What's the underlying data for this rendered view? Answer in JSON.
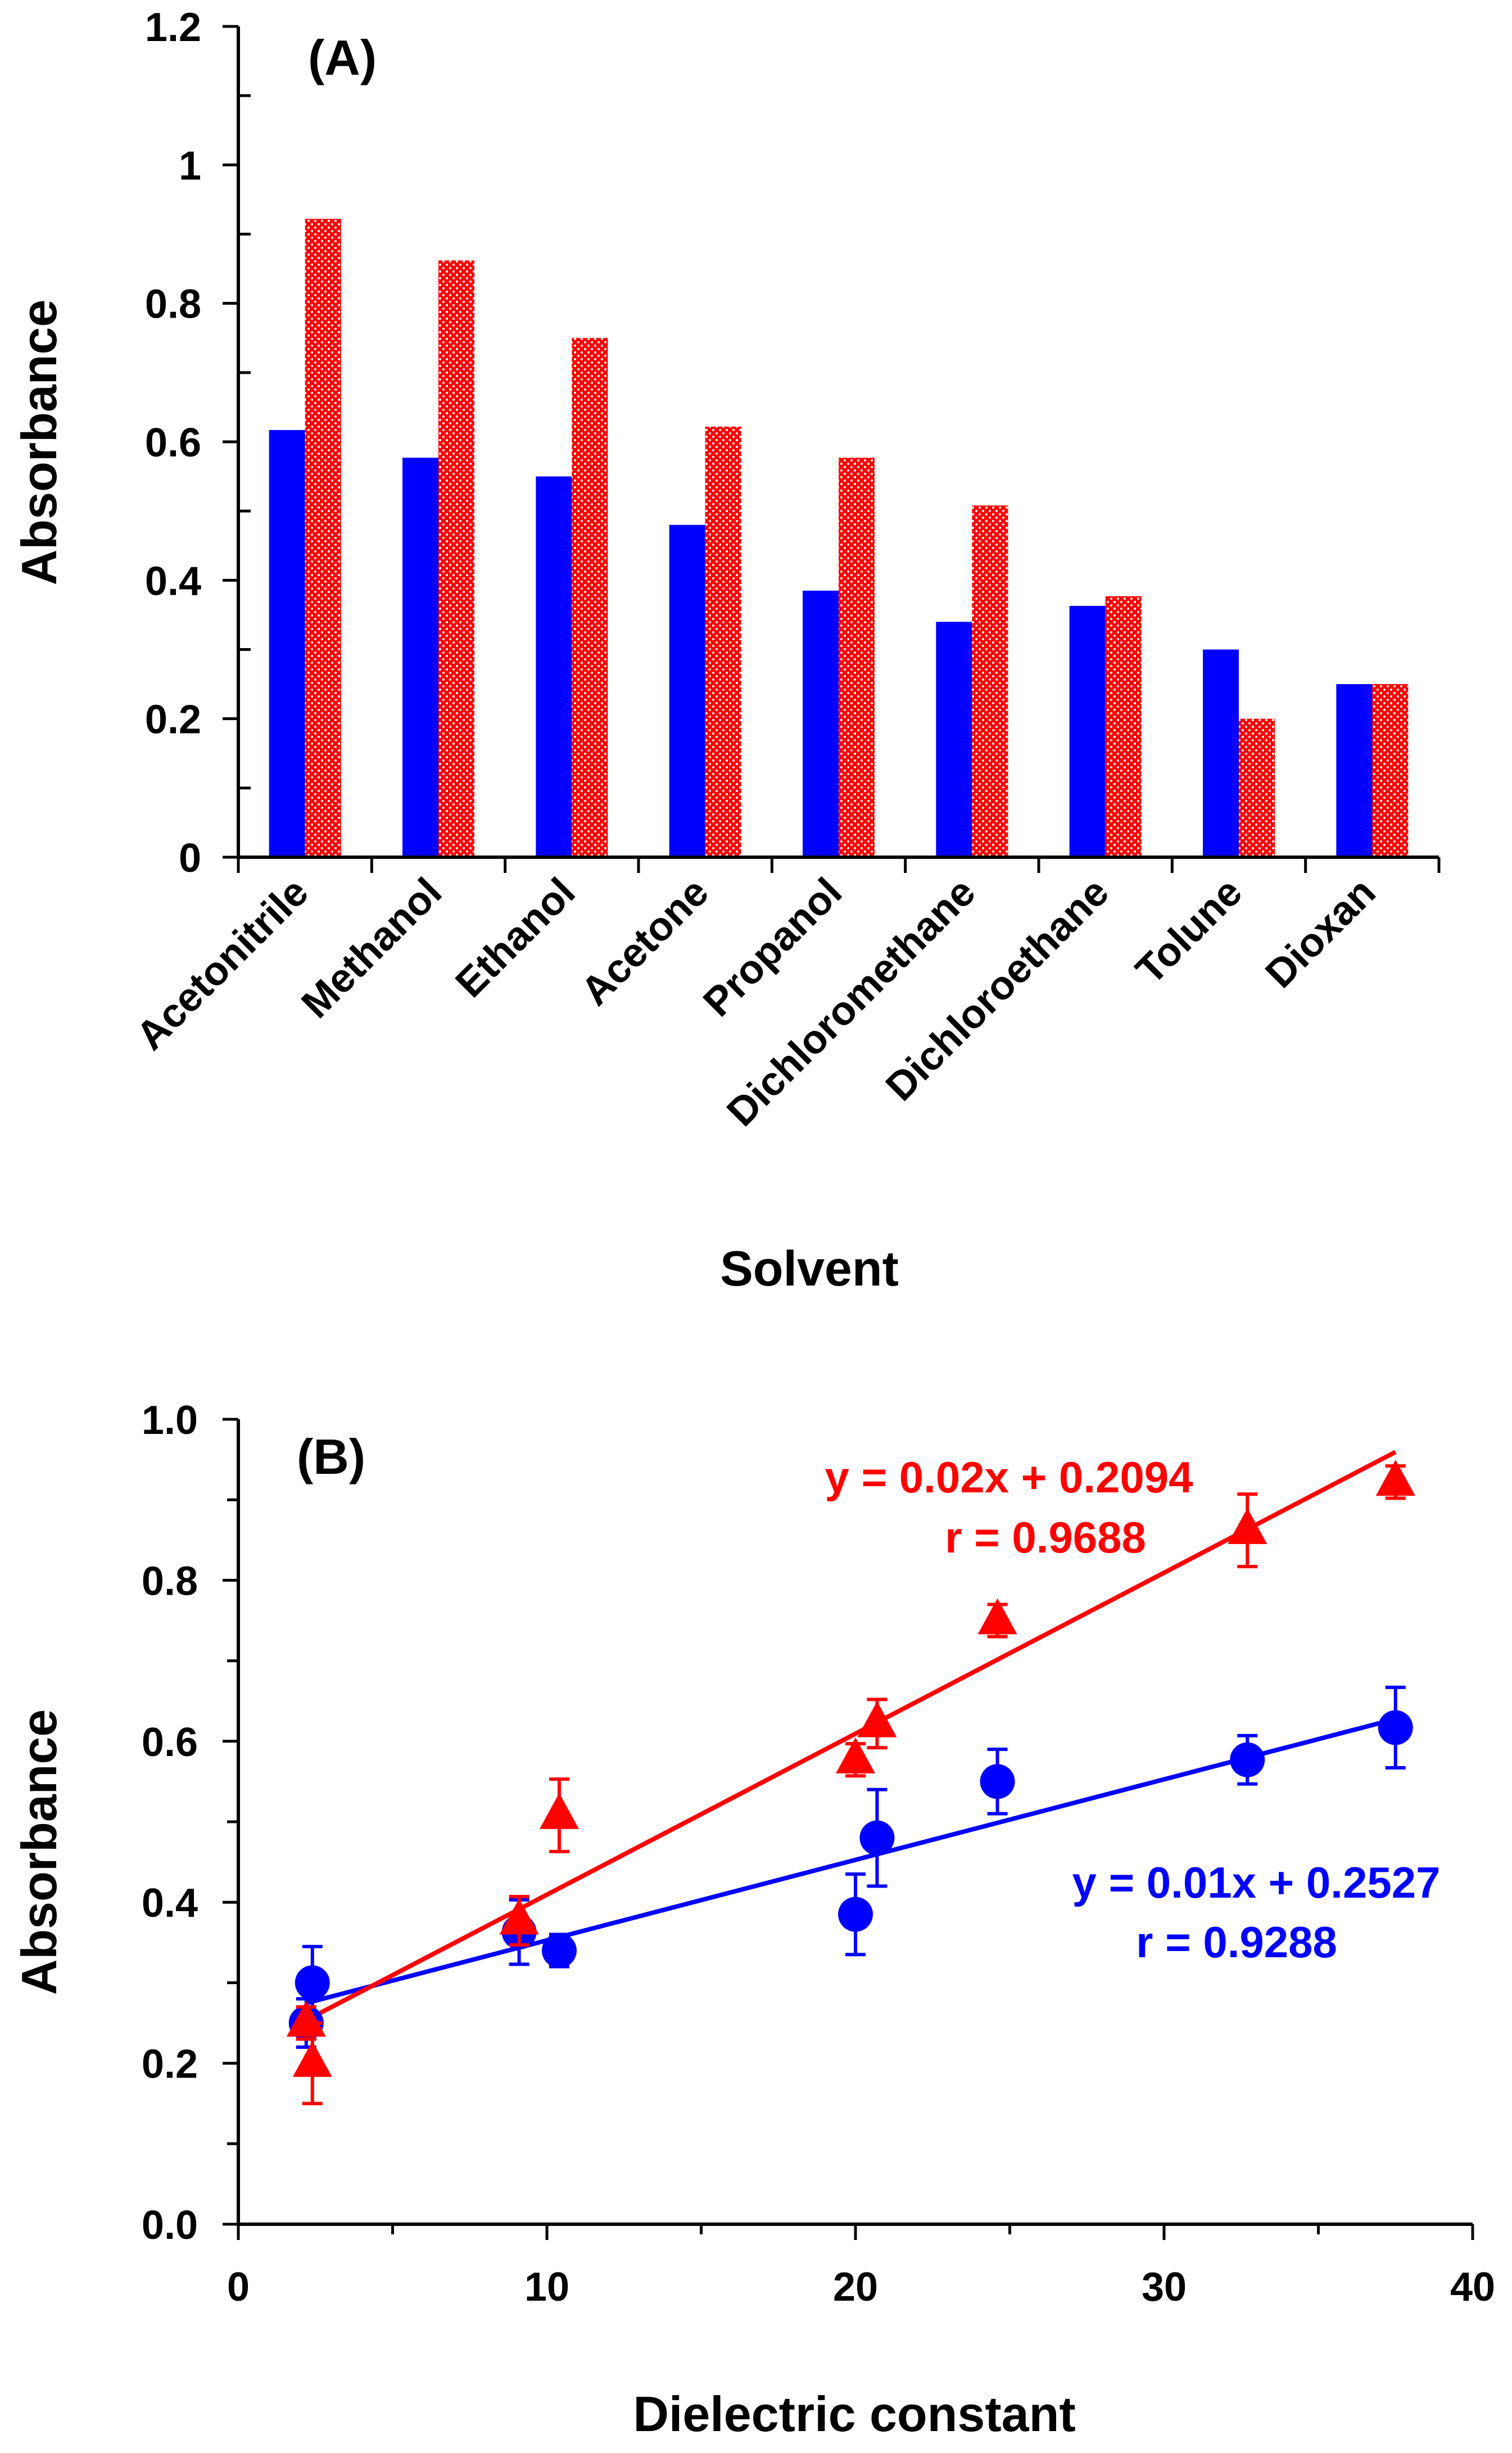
{
  "chart_data": [
    {
      "type": "bar",
      "panel_label": "(A)",
      "title": "",
      "xlabel": "Solvent",
      "ylabel": "Absorbance",
      "ylim": [
        0,
        1.2
      ],
      "yticks": [
        0,
        0.2,
        0.4,
        0.6,
        0.8,
        1,
        1.2
      ],
      "ytick_labels": [
        "0",
        "0.2",
        "0.4",
        "0.6",
        "0.8",
        "1",
        "1.2"
      ],
      "categories": [
        "Acetonitrile",
        "Methanol",
        "Ethanol",
        "Acetone",
        "Propanol",
        "Dichloromethane",
        "Dichloroethane",
        "Tolune",
        "Dioxan"
      ],
      "series": [
        {
          "name": "series-1",
          "color": "#0000ff",
          "pattern": "solid",
          "values": [
            0.617,
            0.577,
            0.55,
            0.48,
            0.385,
            0.34,
            0.363,
            0.3,
            0.25
          ]
        },
        {
          "name": "series-2",
          "color": "#ff0000",
          "pattern": "dotted",
          "values": [
            0.922,
            0.862,
            0.75,
            0.622,
            0.577,
            0.508,
            0.377,
            0.2,
            0.25
          ]
        }
      ],
      "grid": false
    },
    {
      "type": "scatter",
      "panel_label": "(B)",
      "title": "",
      "xlabel": "Dielectric constant",
      "ylabel": "Absorbance",
      "xlim": [
        0,
        40
      ],
      "ylim": [
        0,
        1.0
      ],
      "xticks": [
        0,
        10,
        20,
        30,
        40
      ],
      "xtick_labels": [
        "0",
        "10",
        "20",
        "30",
        "40"
      ],
      "yticks": [
        0,
        0.2,
        0.4,
        0.6,
        0.8,
        1.0
      ],
      "ytick_labels": [
        "0.0",
        "0.2",
        "0.4",
        "0.6",
        "0.8",
        "1.0"
      ],
      "grid": false,
      "series": [
        {
          "name": "blue-circles",
          "color": "#0000ff",
          "marker": "circle",
          "x": [
            2.2,
            2.4,
            9.1,
            10.4,
            20.0,
            20.7,
            24.6,
            32.7,
            37.5
          ],
          "y": [
            0.25,
            0.3,
            0.363,
            0.34,
            0.385,
            0.48,
            0.55,
            0.577,
            0.617
          ],
          "err": [
            0.03,
            0.045,
            0.04,
            0.02,
            0.05,
            0.06,
            0.04,
            0.03,
            0.05
          ],
          "fit": {
            "slope": 0.01,
            "intercept": 0.2527,
            "x_range": [
              2.2,
              37.5
            ]
          },
          "equation": "y = 0.01x + 0.2527",
          "r_label": "r = 0.9288"
        },
        {
          "name": "red-triangles",
          "color": "#ff0000",
          "marker": "triangle",
          "x": [
            2.2,
            2.4,
            9.1,
            10.4,
            20.0,
            20.7,
            24.6,
            32.7,
            37.5
          ],
          "y": [
            0.25,
            0.2,
            0.377,
            0.508,
            0.577,
            0.622,
            0.75,
            0.862,
            0.922
          ],
          "err": [
            0.02,
            0.05,
            0.03,
            0.045,
            0.02,
            0.03,
            0.02,
            0.045,
            0.02
          ],
          "fit": {
            "slope": 0.02,
            "intercept": 0.2094,
            "x_range": [
              2.2,
              37.5
            ]
          },
          "equation": "y = 0.02x + 0.2094",
          "r_label": "r = 0.9688"
        }
      ]
    }
  ]
}
